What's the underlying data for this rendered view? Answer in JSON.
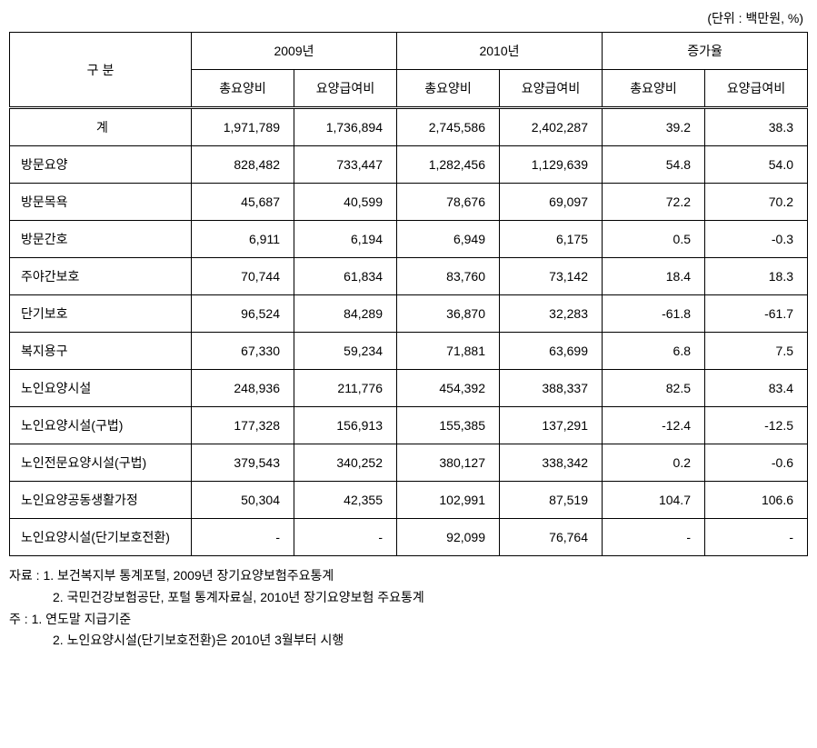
{
  "unit_label": "(단위 : 백만원, %)",
  "headers": {
    "category": "구 분",
    "year_2009": "2009년",
    "year_2010": "2010년",
    "growth_rate": "증가율",
    "total_care_cost": "총요양비",
    "care_benefit_cost": "요양급여비"
  },
  "rows": [
    {
      "label": "계",
      "center": true,
      "y2009_total": "1,971,789",
      "y2009_benefit": "1,736,894",
      "y2010_total": "2,745,586",
      "y2010_benefit": "2,402,287",
      "growth_total": "39.2",
      "growth_benefit": "38.3",
      "is_total": true
    },
    {
      "label": "방문요양",
      "y2009_total": "828,482",
      "y2009_benefit": "733,447",
      "y2010_total": "1,282,456",
      "y2010_benefit": "1,129,639",
      "growth_total": "54.8",
      "growth_benefit": "54.0"
    },
    {
      "label": "방문목욕",
      "y2009_total": "45,687",
      "y2009_benefit": "40,599",
      "y2010_total": "78,676",
      "y2010_benefit": "69,097",
      "growth_total": "72.2",
      "growth_benefit": "70.2"
    },
    {
      "label": "방문간호",
      "y2009_total": "6,911",
      "y2009_benefit": "6,194",
      "y2010_total": "6,949",
      "y2010_benefit": "6,175",
      "growth_total": "0.5",
      "growth_benefit": "-0.3"
    },
    {
      "label": "주야간보호",
      "y2009_total": "70,744",
      "y2009_benefit": "61,834",
      "y2010_total": "83,760",
      "y2010_benefit": "73,142",
      "growth_total": "18.4",
      "growth_benefit": "18.3"
    },
    {
      "label": "단기보호",
      "y2009_total": "96,524",
      "y2009_benefit": "84,289",
      "y2010_total": "36,870",
      "y2010_benefit": "32,283",
      "growth_total": "-61.8",
      "growth_benefit": "-61.7"
    },
    {
      "label": "복지용구",
      "y2009_total": "67,330",
      "y2009_benefit": "59,234",
      "y2010_total": "71,881",
      "y2010_benefit": "63,699",
      "growth_total": "6.8",
      "growth_benefit": "7.5"
    },
    {
      "label": "노인요양시설",
      "y2009_total": "248,936",
      "y2009_benefit": "211,776",
      "y2010_total": "454,392",
      "y2010_benefit": "388,337",
      "growth_total": "82.5",
      "growth_benefit": "83.4"
    },
    {
      "label": "노인요양시설(구법)",
      "y2009_total": "177,328",
      "y2009_benefit": "156,913",
      "y2010_total": "155,385",
      "y2010_benefit": "137,291",
      "growth_total": "-12.4",
      "growth_benefit": "-12.5"
    },
    {
      "label": "노인전문요양시설(구법)",
      "y2009_total": "379,543",
      "y2009_benefit": "340,252",
      "y2010_total": "380,127",
      "y2010_benefit": "338,342",
      "growth_total": "0.2",
      "growth_benefit": "-0.6"
    },
    {
      "label": "노인요양공동생활가정",
      "y2009_total": "50,304",
      "y2009_benefit": "42,355",
      "y2010_total": "102,991",
      "y2010_benefit": "87,519",
      "growth_total": "104.7",
      "growth_benefit": "106.6"
    },
    {
      "label": "노인요양시설(단기보호전환)",
      "y2009_total": "-",
      "y2009_benefit": "-",
      "y2010_total": "92,099",
      "y2010_benefit": "76,764",
      "growth_total": "-",
      "growth_benefit": "-"
    }
  ],
  "footnotes": {
    "source_label": "자료 :",
    "source_1": "1. 보건복지부 통계포털, 2009년 장기요양보험주요통계",
    "source_2": "2. 국민건강보험공단, 포털 통계자료실, 2010년 장기요양보험 주요통계",
    "note_label": "주 :",
    "note_1": "1. 연도말 지급기준",
    "note_2": "2. 노인요양시설(단기보호전환)은 2010년 3월부터 시행"
  }
}
